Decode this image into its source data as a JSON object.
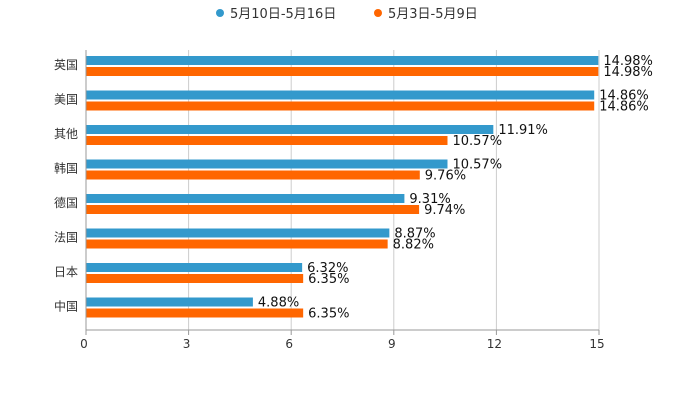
{
  "chart_data": {
    "type": "bar",
    "orientation": "horizontal",
    "categories": [
      "英国",
      "美国",
      "其他",
      "韩国",
      "德国",
      "法国",
      "日本",
      "中国"
    ],
    "series": [
      {
        "name": "5月10日-5月16日",
        "color": "#3399cc",
        "values": [
          14.98,
          14.86,
          11.91,
          10.57,
          9.31,
          8.87,
          6.32,
          4.88
        ],
        "labels": [
          "14.98%",
          "14.86%",
          "11.91%",
          "10.57%",
          "9.31%",
          "8.87%",
          "6.32%",
          "4.88%"
        ]
      },
      {
        "name": "5月3日-5月9日",
        "color": "#ff6600",
        "values": [
          14.98,
          14.86,
          10.57,
          9.76,
          9.74,
          8.82,
          6.35,
          6.35
        ],
        "labels": [
          "14.98%",
          "14.86%",
          "10.57%",
          "9.76%",
          "9.74%",
          "8.82%",
          "6.35%",
          "6.35%"
        ]
      }
    ],
    "xlim": [
      0,
      15
    ],
    "xticks": [
      0,
      3,
      6,
      9,
      12,
      15
    ],
    "xtick_labels": [
      "0",
      "3",
      "6",
      "9",
      "12",
      "15"
    ],
    "grid": true,
    "legend_position": "top-center"
  }
}
